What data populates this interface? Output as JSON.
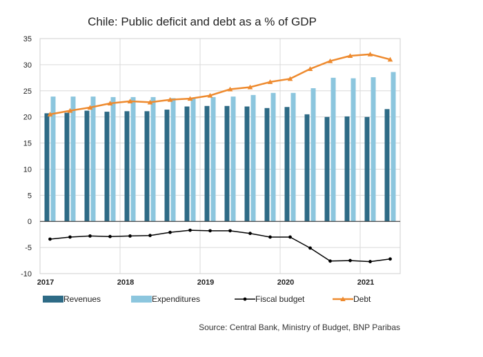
{
  "chart_data": {
    "type": "bar",
    "title": "Chile: Public deficit and debt as a % of GDP",
    "source": "Source: Central Bank, Ministry of Budget, BNP Paribas",
    "xlabel": "",
    "ylabel": "",
    "ylim": [
      -10,
      35
    ],
    "y_ticks": [
      35,
      30,
      25,
      20,
      15,
      10,
      5,
      0,
      -5,
      -10
    ],
    "y_tick_labels": [
      "35",
      "30",
      "25",
      "20",
      "15",
      "10",
      "5",
      "0",
      "-5",
      "-10"
    ],
    "x_tick_labels": [
      "2017",
      "2018",
      "2019",
      "2020",
      "2021"
    ],
    "quarters": [
      "2017 Q1",
      "2017 Q2",
      "2017 Q3",
      "2017 Q4",
      "2018 Q1",
      "2018 Q2",
      "2018 Q3",
      "2018 Q4",
      "2019 Q1",
      "2019 Q2",
      "2019 Q3",
      "2019 Q4",
      "2020 Q1",
      "2020 Q2",
      "2020 Q3",
      "2020 Q4",
      "2021 Q1",
      "2021 Q2"
    ],
    "grid": true,
    "series": [
      {
        "name": "Revenues",
        "kind": "bar",
        "color": "#2e6b86",
        "values": [
          20.7,
          20.8,
          21.2,
          21.0,
          21.1,
          21.1,
          21.4,
          22.0,
          22.1,
          22.1,
          22.0,
          21.7,
          21.9,
          20.5,
          20.0,
          20.1,
          20.0,
          21.5
        ]
      },
      {
        "name": "Expenditures",
        "kind": "bar",
        "color": "#8cc6de",
        "values": [
          23.9,
          23.9,
          23.9,
          23.8,
          23.8,
          23.8,
          23.6,
          23.7,
          23.8,
          23.9,
          24.2,
          24.6,
          24.6,
          25.5,
          27.5,
          27.4,
          27.6,
          28.6
        ]
      },
      {
        "name": "Fiscal budget",
        "kind": "line",
        "color": "#000000",
        "values": [
          -3.4,
          -3.0,
          -2.8,
          -2.9,
          -2.8,
          -2.7,
          -2.1,
          -1.7,
          -1.8,
          -1.8,
          -2.3,
          -3.0,
          -3.0,
          -5.1,
          -7.6,
          -7.5,
          -7.7,
          -7.2
        ]
      },
      {
        "name": "Debt",
        "kind": "line",
        "color": "#ee8a2e",
        "values": [
          20.5,
          21.2,
          21.8,
          22.6,
          23.0,
          22.8,
          23.3,
          23.5,
          24.1,
          25.3,
          25.7,
          26.7,
          27.3,
          29.2,
          30.7,
          31.7,
          32.0,
          31.0
        ]
      }
    ],
    "legend": {
      "placement": "bottom",
      "entries": [
        "Revenues",
        "Expenditures",
        "Fiscal budget",
        "Debt"
      ]
    }
  }
}
